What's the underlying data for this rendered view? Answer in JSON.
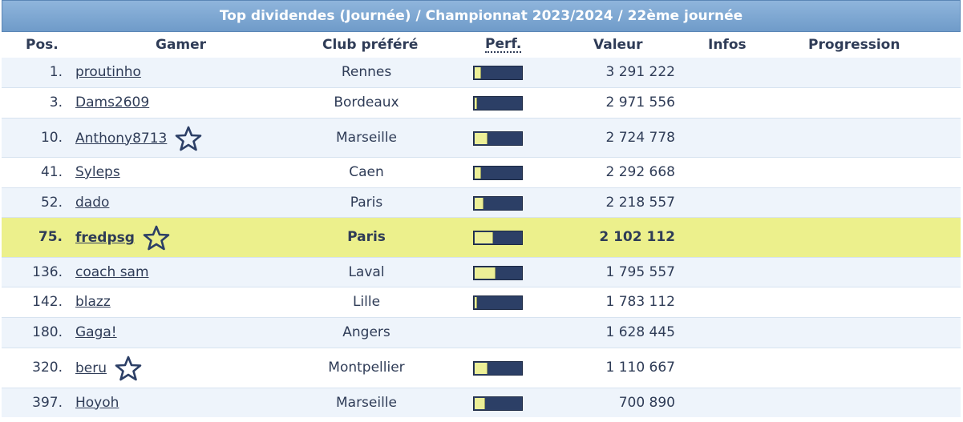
{
  "title": "Top dividendes (Journée) / Championnat 2023/2024 / 22ème journée",
  "columns": {
    "pos": "Pos.",
    "gamer": "Gamer",
    "club": "Club préféré",
    "perf": "Perf.",
    "valeur": "Valeur",
    "infos": "Infos",
    "progression": "Progression"
  },
  "rows": [
    {
      "pos": "1.",
      "gamer": "proutinho",
      "star": false,
      "club": "Rennes",
      "perf": 0.12,
      "valeur": "3 291 222",
      "highlight": false
    },
    {
      "pos": "3.",
      "gamer": "Dams2609",
      "star": false,
      "club": "Bordeaux",
      "perf": 0.04,
      "valeur": "2 971 556",
      "highlight": false
    },
    {
      "pos": "10.",
      "gamer": "Anthony8713",
      "star": true,
      "club": "Marseille",
      "perf": 0.25,
      "valeur": "2 724 778",
      "highlight": false
    },
    {
      "pos": "41.",
      "gamer": "Syleps",
      "star": false,
      "club": "Caen",
      "perf": 0.12,
      "valeur": "2 292 668",
      "highlight": false
    },
    {
      "pos": "52.",
      "gamer": "dado",
      "star": false,
      "club": "Paris",
      "perf": 0.17,
      "valeur": "2 218 557",
      "highlight": false
    },
    {
      "pos": "75.",
      "gamer": "fredpsg",
      "star": true,
      "club": "Paris",
      "perf": 0.38,
      "valeur": "2 102 112",
      "highlight": true
    },
    {
      "pos": "136.",
      "gamer": "coach sam",
      "star": false,
      "club": "Laval",
      "perf": 0.43,
      "valeur": "1 795 557",
      "highlight": false
    },
    {
      "pos": "142.",
      "gamer": "blazz",
      "star": false,
      "club": "Lille",
      "perf": 0.04,
      "valeur": "1 783 112",
      "highlight": false
    },
    {
      "pos": "180.",
      "gamer": "Gaga!",
      "star": false,
      "club": "Angers",
      "perf": null,
      "valeur": "1 628 445",
      "highlight": false
    },
    {
      "pos": "320.",
      "gamer": "beru",
      "star": true,
      "club": "Montpellier",
      "perf": 0.25,
      "valeur": "1 110 667",
      "highlight": false
    },
    {
      "pos": "397.",
      "gamer": "Hoyoh",
      "star": false,
      "club": "Marseille",
      "perf": 0.2,
      "valeur": "700 890",
      "highlight": false
    }
  ],
  "colors": {
    "title_bg": "#7ea8d4",
    "row_alt": "#eef4fb",
    "highlight": "#ecf08c",
    "bar_bg": "#2c3f66",
    "bar_fill": "#ecef97"
  },
  "icons": {
    "favorite": "star-outline-icon"
  }
}
